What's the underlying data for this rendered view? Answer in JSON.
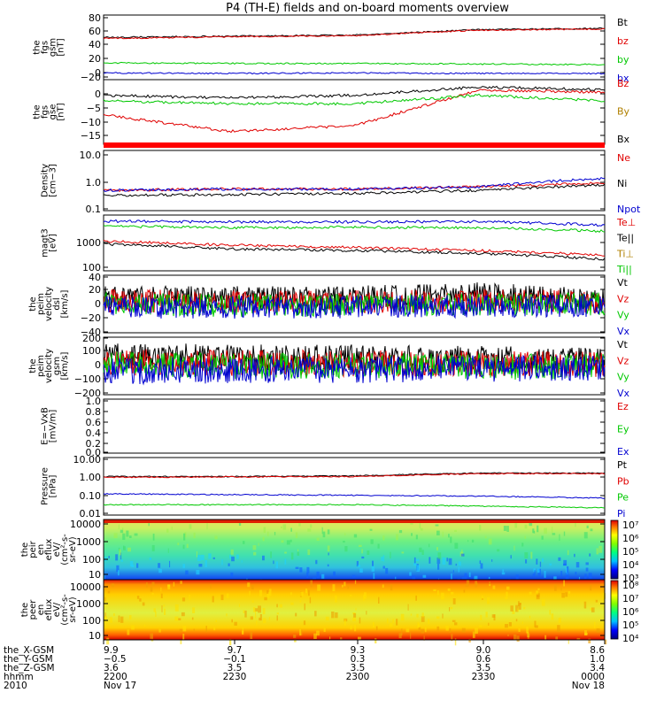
{
  "title": "P4 (TH-E) fields and on-board moments overview",
  "colors": {
    "red": "#e00000",
    "green": "#00c800",
    "blue": "#0000d0",
    "black": "#000000",
    "gold": "#b08000"
  },
  "panels": [
    {
      "id": "fgs_gsm",
      "ylabel": [
        "the",
        "fgs",
        "gsm",
        "[nT]"
      ],
      "ticks": [
        "80",
        "60",
        "40",
        "20",
        "0",
        "−20"
      ],
      "legend": [
        {
          "label": "Bt",
          "color": "black"
        },
        {
          "label": "bz",
          "color": "red"
        },
        {
          "label": "by",
          "color": "green"
        },
        {
          "label": "bx",
          "color": "blue"
        }
      ]
    },
    {
      "id": "fgs_gse",
      "ylabel": [
        "the",
        "fgs",
        "gse",
        "[nT]"
      ],
      "ticks": [
        "0",
        "−5",
        "−10",
        "−15"
      ],
      "legend": [
        {
          "label": "Bz",
          "color": "red"
        },
        {
          "label": "By",
          "color": "gold"
        },
        {
          "label": "Bx",
          "color": "black"
        }
      ]
    },
    {
      "id": "density",
      "ylabel": [
        "Density",
        "[cm−3]"
      ],
      "ticks": [
        "10.0",
        "1.0",
        "0.1"
      ],
      "legend": [
        {
          "label": "Ne",
          "color": "red"
        },
        {
          "label": "Ni",
          "color": "black"
        },
        {
          "label": "Npot",
          "color": "blue"
        }
      ]
    },
    {
      "id": "temp",
      "ylabel": [
        "magt3",
        "[eV]"
      ],
      "ticks": [
        "1000",
        "100"
      ],
      "legend": [
        {
          "label": "Te⊥",
          "color": "red"
        },
        {
          "label": "Te||",
          "color": "black"
        },
        {
          "label": "Ti⊥",
          "color": "gold"
        },
        {
          "label": "Ti||",
          "color": "green"
        }
      ]
    },
    {
      "id": "velocity_dsl",
      "ylabel": [
        "the",
        "peim",
        "velocity",
        "dsl",
        "[km/s]"
      ],
      "ticks": [
        "40",
        "20",
        "0",
        "−20",
        "−40"
      ],
      "legend": [
        {
          "label": "Vt",
          "color": "black"
        },
        {
          "label": "Vz",
          "color": "red"
        },
        {
          "label": "Vy",
          "color": "green"
        },
        {
          "label": "Vx",
          "color": "blue"
        }
      ]
    },
    {
      "id": "velocity_gsm",
      "ylabel": [
        "the",
        "peim",
        "velocity",
        "gsm",
        "[km/s]"
      ],
      "ticks": [
        "200",
        "100",
        "0",
        "−100",
        "−200"
      ],
      "legend": [
        {
          "label": "Vt",
          "color": "black"
        },
        {
          "label": "Vz",
          "color": "red"
        },
        {
          "label": "Vy",
          "color": "green"
        },
        {
          "label": "Vx",
          "color": "blue"
        }
      ]
    },
    {
      "id": "e_vxb",
      "ylabel": [
        "E=−VxB",
        "[mV/m]"
      ],
      "ticks": [
        "1.0",
        "0.8",
        "0.6",
        "0.4",
        "0.2",
        "0.0"
      ],
      "legend": [
        {
          "label": "Ez",
          "color": "red"
        },
        {
          "label": "Ey",
          "color": "green"
        },
        {
          "label": "Ex",
          "color": "blue"
        }
      ]
    },
    {
      "id": "pressure",
      "ylabel": [
        "Pressure",
        "[nPa]"
      ],
      "ticks": [
        "10.00",
        "1.00",
        "0.10",
        "0.01"
      ],
      "legend": [
        {
          "label": "Pt",
          "color": "black"
        },
        {
          "label": "Pb",
          "color": "red"
        },
        {
          "label": "Pe",
          "color": "green"
        },
        {
          "label": "Pi",
          "color": "blue"
        }
      ]
    },
    {
      "id": "ion_spec",
      "ylabel": [
        "the",
        "peir",
        "en",
        "eflux",
        "eV/",
        "(cm²-s-",
        "sr-eV)"
      ],
      "ticks": [
        "10000",
        "1000",
        "100",
        "10"
      ],
      "colorbar": [
        "10⁷",
        "10⁶",
        "10⁵",
        "10⁴",
        "10³"
      ]
    },
    {
      "id": "elec_spec",
      "ylabel": [
        "the",
        "peer",
        "en",
        "eflux",
        "eV/",
        "(cm²-s-",
        "sr-eV)"
      ],
      "ticks": [
        "10000",
        "1000",
        "100",
        "10"
      ],
      "colorbar": [
        "10⁸",
        "10⁷",
        "10⁶",
        "10⁵",
        "10⁴"
      ]
    }
  ],
  "ephemeris": {
    "rows": [
      {
        "label": "the_X-GSM",
        "values": [
          "9.9",
          "9.7",
          "9.3",
          "9.0",
          "8.6"
        ]
      },
      {
        "label": "the_Y-GSM",
        "values": [
          "−0.5",
          "−0.1",
          "0.3",
          "0.6",
          "1.0"
        ]
      },
      {
        "label": "the_Z-GSM",
        "values": [
          "3.6",
          "3.5",
          "3.5",
          "3.5",
          "3.4"
        ]
      },
      {
        "label": "hhmm",
        "values": [
          "2200",
          "2230",
          "2300",
          "2330",
          "0000"
        ]
      },
      {
        "label": "2010",
        "values": [
          "Nov 17",
          "",
          "",
          "",
          "Nov 18"
        ]
      }
    ]
  },
  "chart_data": {
    "type": "line",
    "title": "P4 (TH-E) fields and on-board moments overview",
    "x": [
      "2200",
      "2230",
      "2300",
      "2330",
      "0000"
    ],
    "xlabel": "hhmm",
    "date_start": "2010 Nov 17",
    "date_end": "2010 Nov 18",
    "panels": [
      {
        "ylabel": "the fgs gsm [nT]",
        "ylim": [
          -25,
          85
        ],
        "series": [
          {
            "name": "Bt",
            "values": [
              48,
              50,
              52,
              62,
              64
            ]
          },
          {
            "name": "bz",
            "values": [
              46,
              49,
              51,
              61,
              63
            ]
          },
          {
            "name": "by",
            "values": [
              2,
              1,
              1,
              0,
              -1
            ]
          },
          {
            "name": "bx",
            "values": [
              -16,
              -17,
              -16,
              -17,
              -17
            ]
          }
        ]
      },
      {
        "ylabel": "the fgs gse [nT]",
        "ylim": [
          -18,
          4
        ],
        "series": [
          {
            "name": "Bz",
            "values": [
              -8,
              -14,
              -12,
              1,
              0
            ]
          },
          {
            "name": "Bx",
            "values": [
              -1,
              -2,
              -1,
              2,
              1
            ]
          },
          {
            "name": "By",
            "values": [
              -3,
              -4,
              -4,
              -1,
              -3
            ]
          }
        ]
      },
      {
        "ylabel": "Density [cm-3]",
        "scale": "log",
        "ylim": [
          0.1,
          10
        ],
        "series": [
          {
            "name": "Ne",
            "values": [
              0.45,
              0.5,
              0.5,
              0.6,
              0.8
            ]
          },
          {
            "name": "Ni",
            "values": [
              0.3,
              0.32,
              0.35,
              0.45,
              0.7
            ]
          },
          {
            "name": "Npot",
            "values": [
              0.45,
              0.5,
              0.5,
              0.6,
              1.2
            ]
          }
        ]
      },
      {
        "ylabel": "magt3 [eV]",
        "scale": "log",
        "ylim": [
          100,
          5000
        ],
        "series": [
          {
            "name": "Te||",
            "values": [
              650,
              450,
              400,
              320,
              210
            ]
          },
          {
            "name": "Te⊥",
            "values": [
              800,
              600,
              500,
              400,
              280
            ]
          },
          {
            "name": "Ti⊥",
            "values": [
              3600,
              3400,
              3400,
              3500,
              2700
            ]
          },
          {
            "name": "Ti||",
            "values": [
              2500,
              2200,
              2300,
              2200,
              1700
            ]
          }
        ]
      },
      {
        "ylabel": "the peim velocity dsl [km/s]",
        "ylim": [
          -40,
          40
        ],
        "series": [
          {
            "name": "Vt",
            "values": [
              10,
              10,
              10,
              15,
              5
            ]
          },
          {
            "name": "Vz",
            "values": [
              5,
              3,
              3,
              5,
              3
            ]
          },
          {
            "name": "Vy",
            "values": [
              0,
              -2,
              -2,
              -1,
              0
            ]
          },
          {
            "name": "Vx",
            "values": [
              -5,
              -5,
              -4,
              -3,
              -2
            ]
          }
        ]
      },
      {
        "ylabel": "the peim velocity gsm [km/s]",
        "ylim": [
          -200,
          200
        ],
        "series": [
          {
            "name": "Vt",
            "values": [
              80,
              60,
              60,
              50,
              40
            ]
          },
          {
            "name": "Vz",
            "values": [
              30,
              20,
              20,
              15,
              10
            ]
          },
          {
            "name": "Vy",
            "values": [
              10,
              0,
              0,
              -5,
              0
            ]
          },
          {
            "name": "Vx",
            "values": [
              -40,
              -30,
              -30,
              -20,
              -20
            ]
          }
        ]
      },
      {
        "ylabel": "E=-VxB [mV/m]",
        "ylim": [
          0,
          1
        ],
        "series": []
      },
      {
        "ylabel": "Pressure [nPa]",
        "scale": "log",
        "ylim": [
          0.01,
          10
        ],
        "series": [
          {
            "name": "Pt",
            "values": [
              1.1,
              1.1,
              1.2,
              1.7,
              1.7
            ]
          },
          {
            "name": "Pb",
            "values": [
              1.0,
              1.05,
              1.1,
              1.6,
              1.6
            ]
          },
          {
            "name": "Pi",
            "values": [
              0.12,
              0.11,
              0.1,
              0.09,
              0.07
            ]
          },
          {
            "name": "Pe",
            "values": [
              0.03,
              0.03,
              0.03,
              0.025,
              0.02
            ]
          }
        ]
      }
    ]
  }
}
